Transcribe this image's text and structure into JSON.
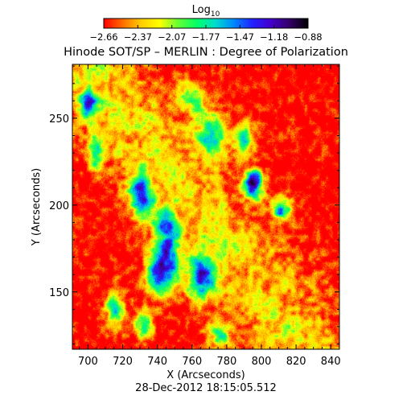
{
  "chart_data": {
    "type": "heatmap",
    "title": "Hinode SOT/SP – MERLIN : Degree of Polarization",
    "subtitle": "28-Dec-2012 18:15:05.512",
    "xlabel": "X (Arcseconds)",
    "ylabel": "Y (Arcseconds)",
    "xlim": [
      691,
      845
    ],
    "ylim": [
      117,
      281
    ],
    "x_ticks": [
      700,
      720,
      740,
      760,
      780,
      800,
      820,
      840
    ],
    "y_ticks": [
      150,
      200,
      250
    ],
    "colorbar": {
      "label_base": "Log",
      "label_sub": "10",
      "ticks": [
        "−2.66",
        "−2.37",
        "−2.07",
        "−1.77",
        "−1.47",
        "−1.18",
        "−0.88"
      ],
      "range": [
        -2.66,
        -0.88
      ],
      "colors": [
        "#ff0000",
        "#ff6a00",
        "#ffcc00",
        "#ffff00",
        "#66ff33",
        "#00ff66",
        "#00ddcc",
        "#0088ff",
        "#2222ff",
        "#4400cc",
        "#330066",
        "#000000"
      ]
    },
    "map": {
      "description_level_field": "levels are 0 (red, low) to 1 (dark, high)",
      "features": [
        {
          "x": 770,
          "y": 240,
          "sx": 6,
          "sy": 10,
          "amp": 0.55
        },
        {
          "x": 795,
          "y": 212,
          "sx": 4,
          "sy": 6,
          "amp": 0.95
        },
        {
          "x": 745,
          "y": 180,
          "sx": 5,
          "sy": 10,
          "amp": 0.8
        },
        {
          "x": 742,
          "y": 160,
          "sx": 6,
          "sy": 8,
          "amp": 0.75
        },
        {
          "x": 765,
          "y": 158,
          "sx": 6,
          "sy": 8,
          "amp": 0.65
        },
        {
          "x": 730,
          "y": 205,
          "sx": 5,
          "sy": 8,
          "amp": 0.6
        },
        {
          "x": 700,
          "y": 258,
          "sx": 3,
          "sy": 6,
          "amp": 0.6
        },
        {
          "x": 812,
          "y": 198,
          "sx": 4,
          "sy": 5,
          "amp": 0.65
        },
        {
          "x": 760,
          "y": 262,
          "sx": 5,
          "sy": 6,
          "amp": 0.5
        },
        {
          "x": 715,
          "y": 140,
          "sx": 4,
          "sy": 8,
          "amp": 0.55
        },
        {
          "x": 732,
          "y": 132,
          "sx": 4,
          "sy": 6,
          "amp": 0.55
        },
        {
          "x": 775,
          "y": 125,
          "sx": 5,
          "sy": 5,
          "amp": 0.45
        },
        {
          "x": 704,
          "y": 230,
          "sx": 3,
          "sy": 8,
          "amp": 0.45
        },
        {
          "x": 790,
          "y": 238,
          "sx": 4,
          "sy": 6,
          "amp": 0.5
        }
      ]
    }
  }
}
